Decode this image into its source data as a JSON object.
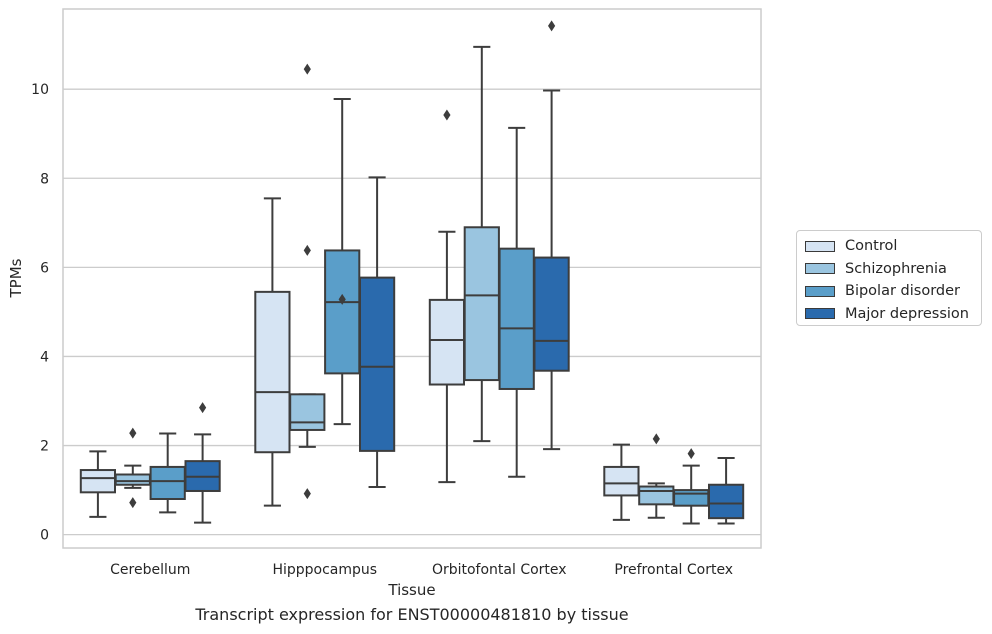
{
  "caption": "Transcript expression for ENST00000481810 by tissue",
  "chart_data": {
    "type": "box",
    "xlabel": "Tissue",
    "ylabel": "TPMs",
    "ylim": [
      -0.3,
      11.8
    ],
    "yticks": [
      0,
      2,
      4,
      6,
      8,
      10
    ],
    "grid": "horizontal",
    "legend_position": "right",
    "categories": [
      "Cerebellum",
      "Hipppocampus",
      "Orbitofontal Cortex",
      "Prefrontal Cortex"
    ],
    "series": [
      {
        "name": "Control",
        "color": "#d6e4f3",
        "boxes": [
          {
            "whisker_low": 0.4,
            "q1": 0.95,
            "median": 1.27,
            "q3": 1.45,
            "whisker_high": 1.87,
            "outliers": []
          },
          {
            "whisker_low": 0.65,
            "q1": 1.85,
            "median": 3.2,
            "q3": 5.45,
            "whisker_high": 7.55,
            "outliers": []
          },
          {
            "whisker_low": 1.18,
            "q1": 3.37,
            "median": 4.37,
            "q3": 5.27,
            "whisker_high": 6.8,
            "outliers": [
              9.42
            ]
          },
          {
            "whisker_low": 0.33,
            "q1": 0.88,
            "median": 1.15,
            "q3": 1.52,
            "whisker_high": 2.02,
            "outliers": []
          }
        ]
      },
      {
        "name": "Schizophrenia",
        "color": "#9ac5e0",
        "boxes": [
          {
            "whisker_low": 1.05,
            "q1": 1.12,
            "median": 1.2,
            "q3": 1.35,
            "whisker_high": 1.55,
            "outliers": [
              2.28,
              0.72
            ]
          },
          {
            "whisker_low": 1.97,
            "q1": 2.35,
            "median": 2.52,
            "q3": 3.15,
            "whisker_high": 3.15,
            "outliers": [
              10.45,
              6.38,
              0.92
            ]
          },
          {
            "whisker_low": 2.1,
            "q1": 3.47,
            "median": 5.37,
            "q3": 6.9,
            "whisker_high": 10.95,
            "outliers": []
          },
          {
            "whisker_low": 0.38,
            "q1": 0.68,
            "median": 0.98,
            "q3": 1.08,
            "whisker_high": 1.15,
            "outliers": [
              2.15
            ]
          }
        ]
      },
      {
        "name": "Bipolar disorder",
        "color": "#5a9ec9",
        "boxes": [
          {
            "whisker_low": 0.5,
            "q1": 0.8,
            "median": 1.2,
            "q3": 1.52,
            "whisker_high": 2.27,
            "outliers": []
          },
          {
            "whisker_low": 2.48,
            "q1": 3.62,
            "median": 5.22,
            "q3": 6.38,
            "whisker_high": 9.78,
            "outliers": [
              5.28
            ]
          },
          {
            "whisker_low": 1.3,
            "q1": 3.27,
            "median": 4.63,
            "q3": 6.42,
            "whisker_high": 9.13,
            "outliers": []
          },
          {
            "whisker_low": 0.25,
            "q1": 0.65,
            "median": 0.92,
            "q3": 1.0,
            "whisker_high": 1.55,
            "outliers": [
              1.82
            ]
          }
        ]
      },
      {
        "name": "Major depression",
        "color": "#2a6aad",
        "boxes": [
          {
            "whisker_low": 0.27,
            "q1": 0.98,
            "median": 1.3,
            "q3": 1.65,
            "whisker_high": 2.25,
            "outliers": [
              2.85
            ]
          },
          {
            "whisker_low": 1.07,
            "q1": 1.88,
            "median": 3.77,
            "q3": 5.77,
            "whisker_high": 8.02,
            "outliers": []
          },
          {
            "whisker_low": 1.92,
            "q1": 3.68,
            "median": 4.35,
            "q3": 6.22,
            "whisker_high": 9.97,
            "outliers": [
              11.42
            ]
          },
          {
            "whisker_low": 0.25,
            "q1": 0.37,
            "median": 0.7,
            "q3": 1.12,
            "whisker_high": 1.72,
            "outliers": []
          }
        ]
      }
    ]
  }
}
